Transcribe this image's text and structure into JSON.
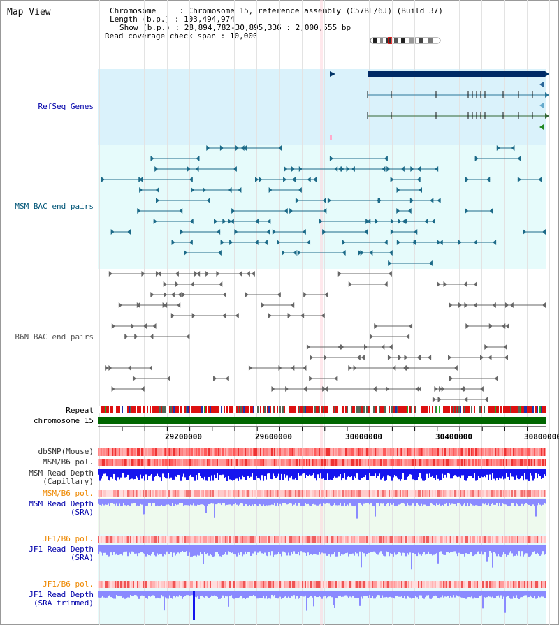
{
  "map_title": "Map View",
  "info": {
    "chrom_label": "Chromosome",
    "chrom_value": "Chromosome 15, reference assembly (C57BL/6J) (Build 37)",
    "length_label": "Length (b.p.)",
    "length_value": "103,494,974",
    "show_label": "Show (b.p.)",
    "show_value": "28,894,782-30,895,336 : 2,000,555 bp",
    "span_label": "Read coverage check span",
    "span_value": "10,000"
  },
  "tracks": {
    "refseq": "RefSeq Genes",
    "msm_bac": "MSM BAC end pairs",
    "b6n_bac": "B6N BAC end pairs",
    "repeat": "Repeat",
    "chromosome": "chromosome 15",
    "dbsnp": "dbSNP(Mouse)",
    "msm_b6_pol_1": "MSM/B6 pol.",
    "msm_depth_cap_1": "MSM Read Depth",
    "msm_depth_cap_2": "(Capillary)",
    "msm_b6_pol_2": "MSM/B6 pol.",
    "msm_depth_sra_1": "MSM Read Depth",
    "msm_depth_sra_2": "(SRA)",
    "jf1_pol_1": "JF1/B6 pol.",
    "jf1_depth_sra_1": "JF1 Read Depth",
    "jf1_depth_sra_2": "(SRA)",
    "jf1_pol_2": "JF1/B6 pol.",
    "jf1_depth_trim_1": "JF1 Read Depth",
    "jf1_depth_trim_2": "(SRA trimmed)"
  },
  "axis_ticks": [
    "29200000",
    "29600000",
    "30000000",
    "30400000",
    "30800000"
  ],
  "colors": {
    "refseq_label": "#0000aa",
    "msm_bac_label": "#005577",
    "b6n_label": "#555555",
    "orange_label": "#ee8800",
    "depth_label": "#0000aa",
    "chrom_bar": "#006600",
    "depth_blue": "#1515ee",
    "depth_light": "#8a8aff"
  }
}
